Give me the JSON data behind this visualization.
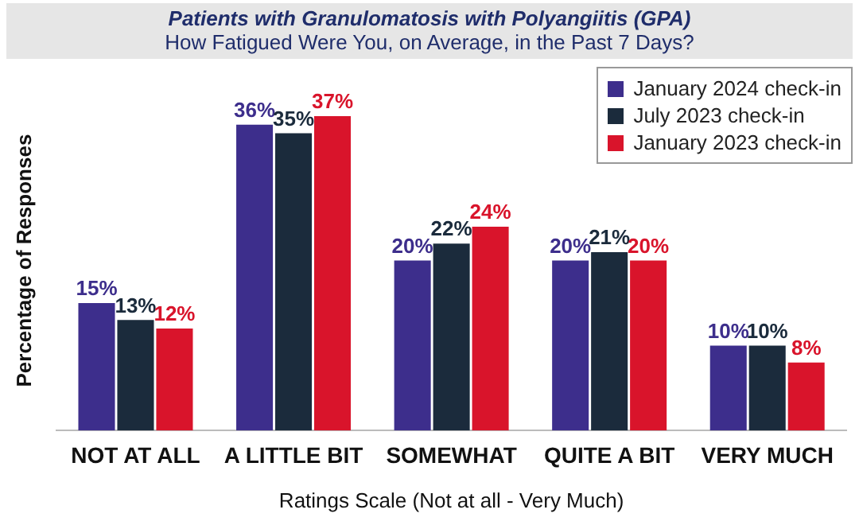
{
  "chart_data": {
    "type": "bar",
    "title": "Patients with Granulomatosis with Polyangiitis (GPA)",
    "subtitle": "How Fatigued Were You, on Average, in the Past 7 Days?",
    "xlabel": "Ratings Scale (Not at all - Very Much)",
    "ylabel": "Percentage of Responses",
    "categories": [
      "NOT AT ALL",
      "A LITTLE BIT",
      "SOMEWHAT",
      "QUITE A BIT",
      "VERY MUCH"
    ],
    "series": [
      {
        "name": "January 2024 check-in",
        "color": "#3d2e8c",
        "values": [
          15,
          36,
          20,
          20,
          10
        ],
        "value_labels": [
          "15%",
          "36%",
          "20%",
          "20%",
          "10%"
        ]
      },
      {
        "name": "July 2023 check-in",
        "color": "#1b2b3c",
        "values": [
          13,
          35,
          22,
          21,
          10
        ],
        "value_labels": [
          "13%",
          "35%",
          "22%",
          "21%",
          "10%"
        ]
      },
      {
        "name": "January 2023 check-in",
        "color": "#d9142b",
        "values": [
          12,
          37,
          24,
          20,
          8
        ],
        "value_labels": [
          "12%",
          "37%",
          "24%",
          "20%",
          "8%"
        ]
      }
    ],
    "legend": "top right",
    "grid": false
  }
}
